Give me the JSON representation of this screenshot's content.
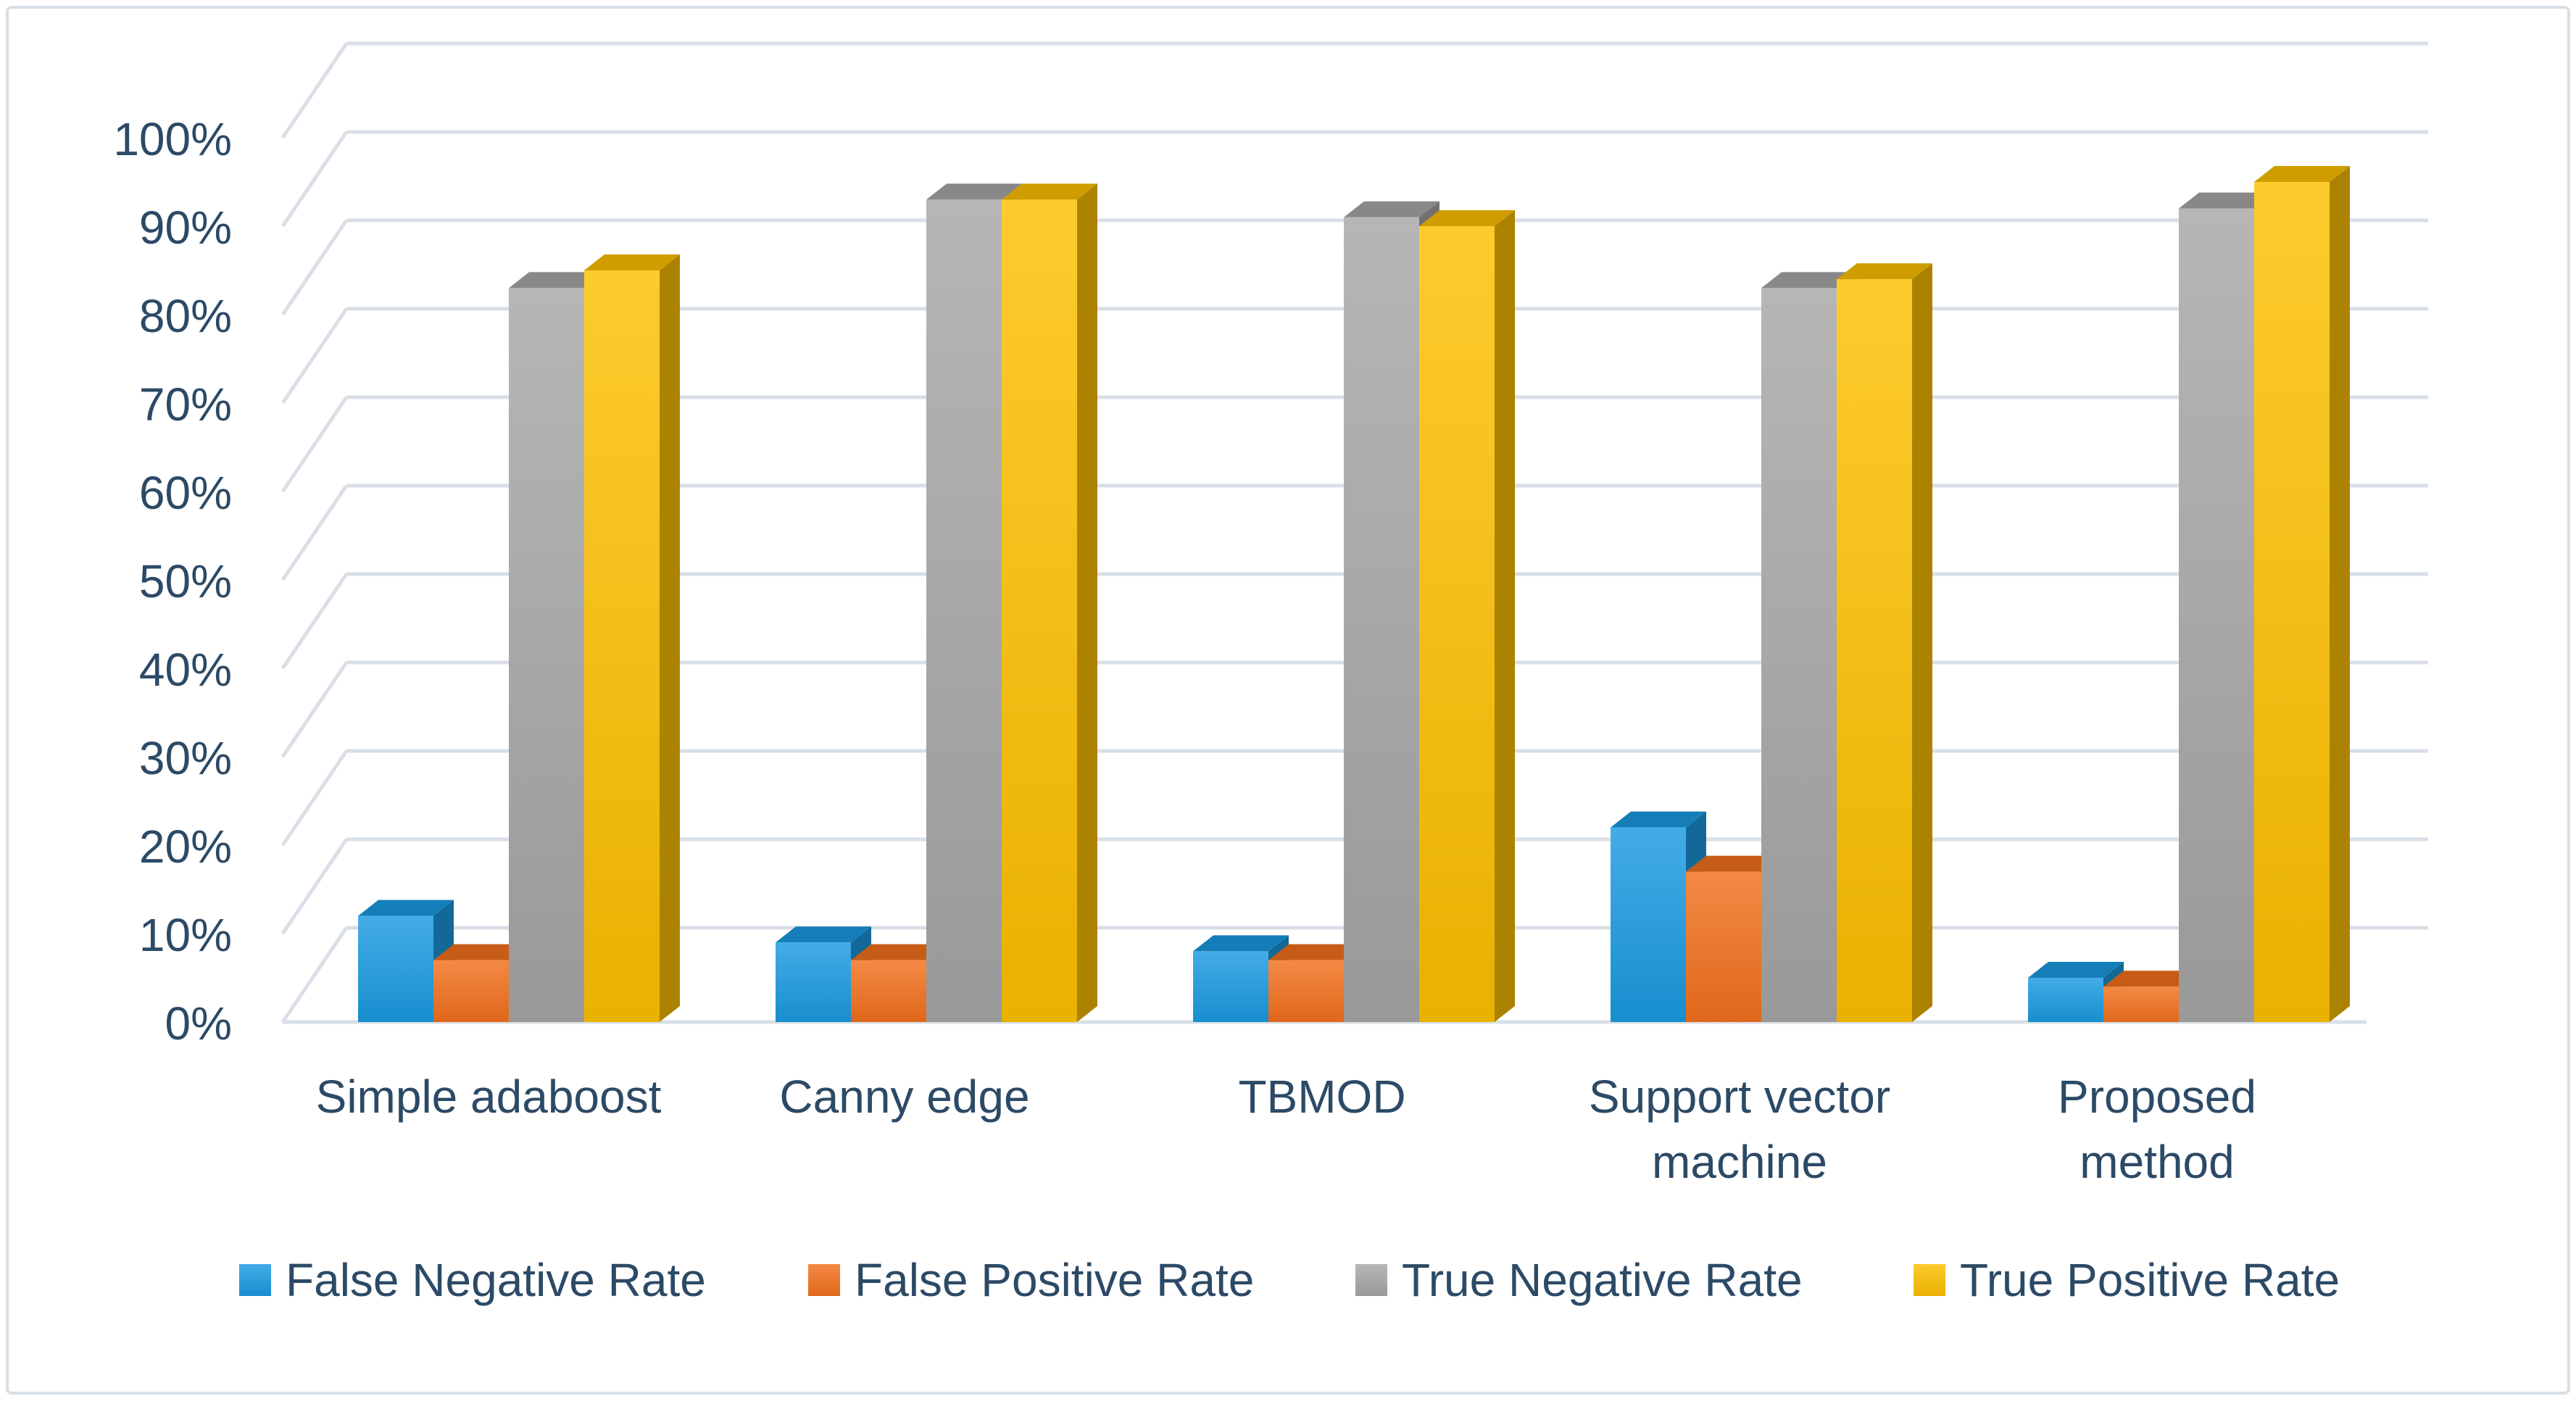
{
  "chart_data": {
    "type": "bar",
    "title": "",
    "xlabel": "",
    "ylabel": "",
    "categories": [
      [
        "Simple adaboost"
      ],
      [
        "Canny edge"
      ],
      [
        "TBMOD"
      ],
      [
        "Support vector",
        "machine"
      ],
      [
        "Proposed",
        "method"
      ]
    ],
    "series": [
      {
        "name": "False Negative Rate",
        "values": [
          12,
          9,
          8,
          22,
          5
        ],
        "color": "#1a9ae0"
      },
      {
        "name": "False Positive Rate",
        "values": [
          7,
          7,
          7,
          17,
          4
        ],
        "color": "#f2701c"
      },
      {
        "name": "True Negative Rate",
        "values": [
          83,
          93,
          91,
          83,
          92
        ],
        "color": "#a6a6a6"
      },
      {
        "name": "True Positive Rate",
        "values": [
          85,
          93,
          90,
          84,
          95
        ],
        "color": "#fdc000"
      }
    ],
    "ylim": [
      0,
      100
    ],
    "yticks": [
      "0%",
      "10%",
      "20%",
      "30%",
      "40%",
      "50%",
      "60%",
      "70%",
      "80%",
      "90%",
      "100%"
    ],
    "grid": true,
    "legend": "bottom"
  }
}
